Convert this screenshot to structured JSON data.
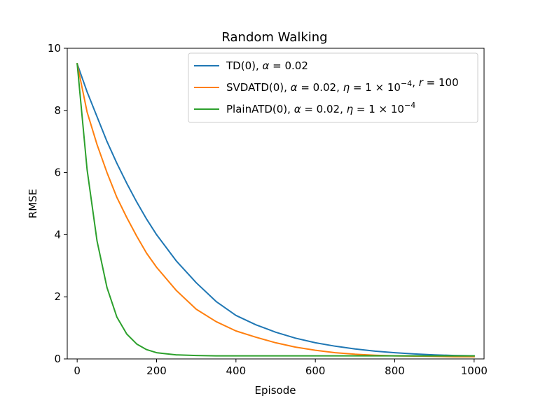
{
  "chart_data": {
    "type": "line",
    "title": "Random Walking",
    "xlabel": "Episode",
    "ylabel": "RMSE",
    "xlim": [
      -25,
      1025
    ],
    "ylim": [
      0,
      10
    ],
    "xticks": [
      0,
      200,
      400,
      600,
      800,
      1000
    ],
    "yticks": [
      0,
      2,
      4,
      6,
      8,
      10
    ],
    "grid": false,
    "legend_position": "top-right",
    "x": [
      0,
      25,
      50,
      75,
      100,
      125,
      150,
      175,
      200,
      250,
      300,
      350,
      400,
      450,
      500,
      550,
      600,
      650,
      700,
      750,
      800,
      850,
      900,
      950,
      1000
    ],
    "series": [
      {
        "name": "TD(0), α = 0.02",
        "legend_parts": [
          "TD(0), ",
          "α",
          " = 0.02"
        ],
        "color": "#1f77b4",
        "values": [
          9.5,
          8.6,
          7.8,
          7.0,
          6.3,
          5.65,
          5.05,
          4.5,
          4.0,
          3.15,
          2.45,
          1.85,
          1.4,
          1.1,
          0.86,
          0.67,
          0.52,
          0.41,
          0.32,
          0.25,
          0.2,
          0.16,
          0.13,
          0.11,
          0.1
        ]
      },
      {
        "name": "SVDATD(0), α = 0.02, η = 1 × 10⁻⁴, r = 100",
        "legend_parts": [
          "SVDATD(0), ",
          "α",
          " = 0.02, ",
          "η",
          " = 1 × 10",
          "−4",
          ", ",
          "r",
          " = 100"
        ],
        "color": "#ff7f0e",
        "values": [
          9.5,
          7.95,
          6.9,
          6.0,
          5.2,
          4.55,
          3.95,
          3.4,
          2.95,
          2.2,
          1.6,
          1.2,
          0.9,
          0.7,
          0.52,
          0.38,
          0.28,
          0.2,
          0.15,
          0.12,
          0.1,
          0.09,
          0.08,
          0.07,
          0.07
        ]
      },
      {
        "name": "PlainATD(0), α = 0.02, η = 1 × 10⁻⁴",
        "legend_parts": [
          "PlainATD(0), ",
          "α",
          " = 0.02, ",
          "η",
          " = 1 × 10",
          "−4"
        ],
        "color": "#2ca02c",
        "values": [
          9.5,
          6.1,
          3.8,
          2.3,
          1.35,
          0.8,
          0.48,
          0.3,
          0.2,
          0.13,
          0.11,
          0.1,
          0.1,
          0.1,
          0.1,
          0.1,
          0.1,
          0.1,
          0.1,
          0.1,
          0.1,
          0.1,
          0.1,
          0.1,
          0.1
        ]
      }
    ]
  }
}
